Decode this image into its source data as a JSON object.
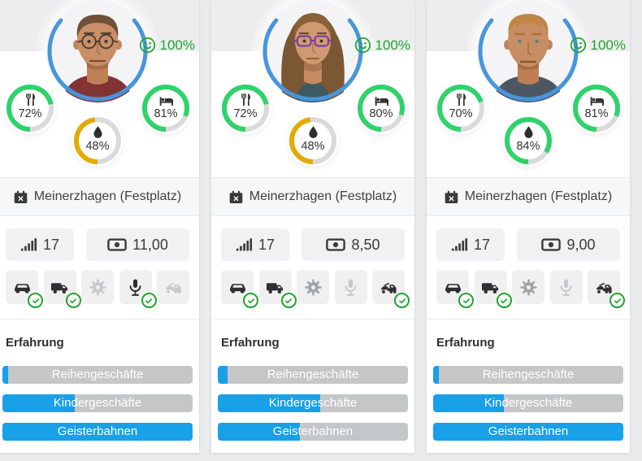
{
  "colors": {
    "bar_blue": "#18a0e8",
    "bar_track": "#c5c6c8",
    "ring_track": "#dadada",
    "ring_green": "#2fd26b",
    "ring_amber": "#e3ab00",
    "good_green": "#1fa52c",
    "avatar_ring_blue": "#4795dc"
  },
  "cards": [
    {
      "avatar": "male-brown-hair-round-glasses",
      "happiness": {
        "icon": "smiley-icon",
        "value": "100%"
      },
      "gauges": [
        {
          "id": "hunger",
          "icon": "food-icon",
          "value": "72%",
          "pct": 72,
          "color": "#2fd26b"
        },
        {
          "id": "rest",
          "icon": "bed-icon",
          "value": "81%",
          "pct": 81,
          "color": "#2fd26b"
        },
        {
          "id": "thirst",
          "icon": "droplet-icon",
          "value": "48%",
          "pct": 48,
          "color": "#e3ab00"
        }
      ],
      "location": {
        "icon": "calendar-x-icon",
        "label": "Meinerzhagen (Festplatz)"
      },
      "stats": [
        {
          "id": "attractiveness",
          "icon": "signal-icon",
          "value": "17"
        },
        {
          "id": "price",
          "icon": "banknote-icon",
          "value": "11,00"
        }
      ],
      "equipment": [
        {
          "id": "car",
          "icon": "car-icon",
          "state": "on",
          "checked": true
        },
        {
          "id": "truck",
          "icon": "truck-icon",
          "state": "on",
          "checked": true
        },
        {
          "id": "gear",
          "icon": "gear-icon",
          "state": "off",
          "checked": false
        },
        {
          "id": "microphone",
          "icon": "microphone-icon",
          "state": "on",
          "checked": true
        },
        {
          "id": "tow-truck",
          "icon": "tow-truck-icon",
          "state": "off",
          "checked": false
        }
      ],
      "experience": {
        "title": "Erfahrung",
        "bars": [
          {
            "label": "Reihengeschäfte",
            "pct": 3
          },
          {
            "label": "Kindergeschäfte",
            "pct": 38
          },
          {
            "label": "Geisterbahnen",
            "pct": 100
          }
        ]
      }
    },
    {
      "avatar": "female-long-brown-hair-purple-glasses",
      "happiness": {
        "icon": "smiley-icon",
        "value": "100%"
      },
      "gauges": [
        {
          "id": "hunger",
          "icon": "food-icon",
          "value": "72%",
          "pct": 72,
          "color": "#2fd26b"
        },
        {
          "id": "rest",
          "icon": "bed-icon",
          "value": "80%",
          "pct": 80,
          "color": "#2fd26b"
        },
        {
          "id": "thirst",
          "icon": "droplet-icon",
          "value": "48%",
          "pct": 48,
          "color": "#e3ab00"
        }
      ],
      "location": {
        "icon": "calendar-x-icon",
        "label": "Meinerzhagen (Festplatz)"
      },
      "stats": [
        {
          "id": "attractiveness",
          "icon": "signal-icon",
          "value": "17"
        },
        {
          "id": "price",
          "icon": "banknote-icon",
          "value": "8,50"
        }
      ],
      "equipment": [
        {
          "id": "car",
          "icon": "car-icon",
          "state": "on",
          "checked": true
        },
        {
          "id": "truck",
          "icon": "truck-icon",
          "state": "on",
          "checked": true
        },
        {
          "id": "gear",
          "icon": "gear-icon",
          "state": "dim",
          "checked": false
        },
        {
          "id": "microphone",
          "icon": "microphone-icon",
          "state": "off",
          "checked": false
        },
        {
          "id": "tow-truck",
          "icon": "tow-truck-icon",
          "state": "on",
          "checked": true
        }
      ],
      "experience": {
        "title": "Erfahrung",
        "bars": [
          {
            "label": "Reihengeschäfte",
            "pct": 5
          },
          {
            "label": "Kindergeschäfte",
            "pct": 54
          },
          {
            "label": "Geisterbahnen",
            "pct": 43
          }
        ]
      }
    },
    {
      "avatar": "male-blond-hair",
      "happiness": {
        "icon": "smiley-icon",
        "value": "100%"
      },
      "gauges": [
        {
          "id": "hunger",
          "icon": "food-icon",
          "value": "70%",
          "pct": 70,
          "color": "#2fd26b"
        },
        {
          "id": "rest",
          "icon": "bed-icon",
          "value": "81%",
          "pct": 81,
          "color": "#2fd26b"
        },
        {
          "id": "thirst",
          "icon": "droplet-icon",
          "value": "84%",
          "pct": 84,
          "color": "#2fd26b"
        }
      ],
      "location": {
        "icon": "calendar-x-icon",
        "label": "Meinerzhagen (Festplatz)"
      },
      "stats": [
        {
          "id": "attractiveness",
          "icon": "signal-icon",
          "value": "17"
        },
        {
          "id": "price",
          "icon": "banknote-icon",
          "value": "9,00"
        }
      ],
      "equipment": [
        {
          "id": "car",
          "icon": "car-icon",
          "state": "on",
          "checked": true
        },
        {
          "id": "truck",
          "icon": "truck-icon",
          "state": "on",
          "checked": true
        },
        {
          "id": "gear",
          "icon": "gear-icon",
          "state": "dim",
          "checked": false
        },
        {
          "id": "microphone",
          "icon": "microphone-icon",
          "state": "off",
          "checked": false
        },
        {
          "id": "tow-truck",
          "icon": "tow-truck-icon",
          "state": "on",
          "checked": true
        }
      ],
      "experience": {
        "title": "Erfahrung",
        "bars": [
          {
            "label": "Reihengeschäfte",
            "pct": 3
          },
          {
            "label": "Kindergeschäfte",
            "pct": 37
          },
          {
            "label": "Geisterbahnen",
            "pct": 100
          }
        ]
      }
    }
  ]
}
